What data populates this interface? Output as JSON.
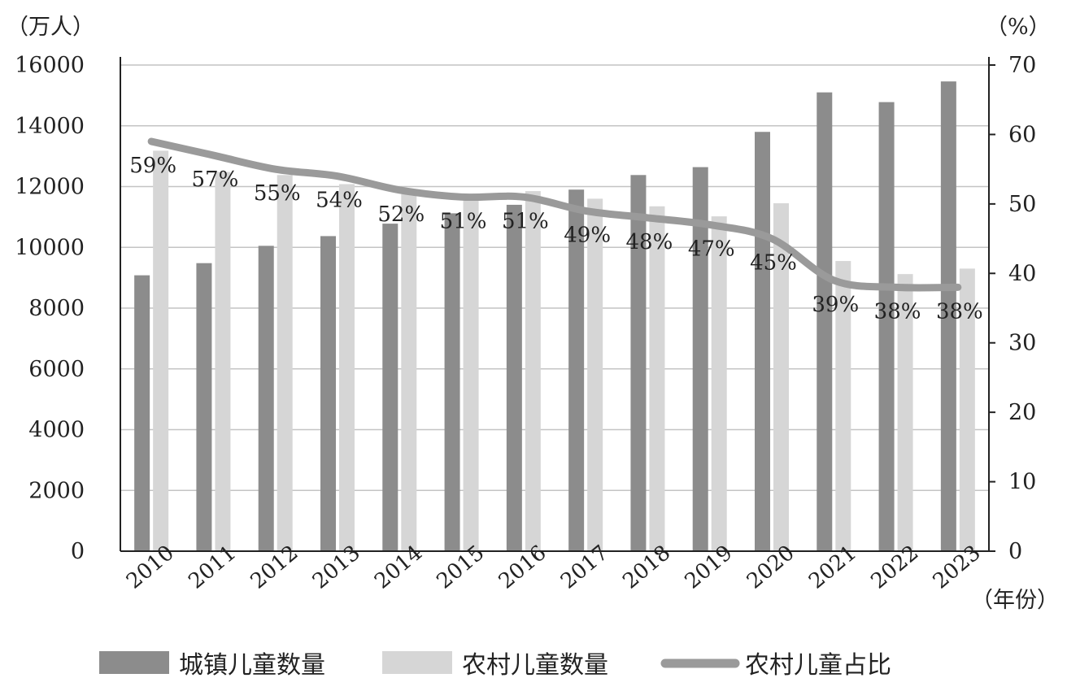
{
  "chart_data": {
    "type": "bar",
    "categories": [
      "2010",
      "2011",
      "2012",
      "2013",
      "2014",
      "2015",
      "2016",
      "2017",
      "2018",
      "2019",
      "2020",
      "2021",
      "2022",
      "2023"
    ],
    "series": [
      {
        "name": "城镇儿童数量",
        "type": "bar",
        "axis": "left",
        "color": "#8c8c8c",
        "values": [
          9080,
          9480,
          10050,
          10370,
          10780,
          11120,
          11400,
          11900,
          12380,
          12640,
          13800,
          15100,
          14780,
          15460
        ]
      },
      {
        "name": "农村儿童数量",
        "type": "bar",
        "axis": "left",
        "color": "#d6d6d6",
        "values": [
          13180,
          12480,
          12380,
          12080,
          11750,
          11700,
          11850,
          11600,
          11350,
          11020,
          11450,
          9550,
          9120,
          9300
        ]
      },
      {
        "name": "农村儿童占比",
        "type": "line",
        "axis": "right",
        "color": "#9a9a9a",
        "values": [
          59,
          57,
          55,
          54,
          52,
          51,
          51,
          49,
          48,
          47,
          45,
          39,
          38,
          38
        ],
        "data_labels": [
          "59%",
          "57%",
          "55%",
          "54%",
          "52%",
          "51%",
          "51%",
          "49%",
          "48%",
          "47%",
          "45%",
          "39%",
          "38%",
          "38%"
        ]
      }
    ],
    "left_axis": {
      "unit_label": "（万人）",
      "ylim": [
        0,
        16000
      ],
      "ticks": [
        "0",
        "2000",
        "4000",
        "6000",
        "8000",
        "10000",
        "12000",
        "14000",
        "16000"
      ]
    },
    "right_axis": {
      "unit_label": "（%）",
      "ylim": [
        0,
        70
      ],
      "ticks": [
        "0",
        "10",
        "20",
        "30",
        "40",
        "50",
        "60",
        "70"
      ]
    },
    "x_axis": {
      "unit_label": "（年份）"
    },
    "grid": true,
    "legend_position": "bottom"
  }
}
